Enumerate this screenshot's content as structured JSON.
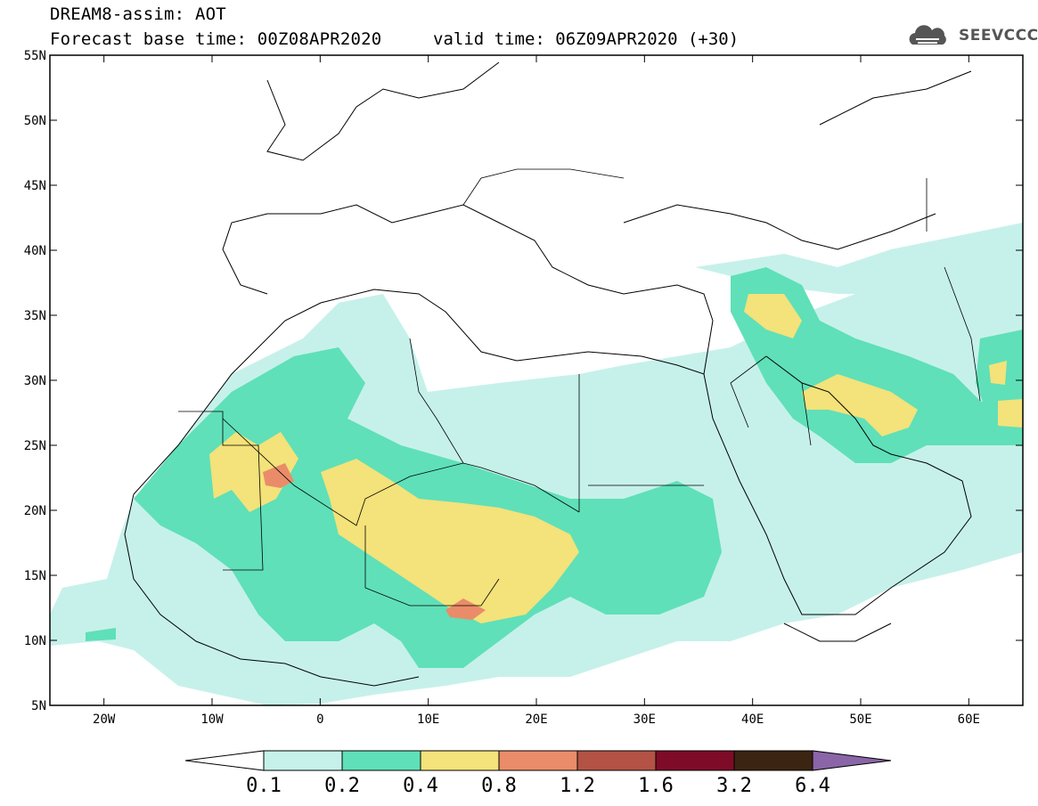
{
  "header": {
    "title": "DREAM8-assim: AOT",
    "base_time": "Forecast base time: 00Z08APR2020",
    "valid_time": "valid time: 06Z09APR2020 (+30)",
    "logo_text": "SEEVCCC"
  },
  "map": {
    "lon_range": [
      -25,
      65
    ],
    "lat_range": [
      5,
      55
    ],
    "lat_labels": [
      "5N",
      "10N",
      "15N",
      "20N",
      "25N",
      "30N",
      "35N",
      "40N",
      "45N",
      "50N",
      "55N"
    ],
    "lon_labels": [
      "20W",
      "10W",
      "0",
      "10E",
      "20E",
      "30E",
      "40E",
      "50E",
      "60E"
    ]
  },
  "legend": {
    "levels": [
      "0.1",
      "0.2",
      "0.4",
      "0.8",
      "1.2",
      "1.6",
      "3.2",
      "6.4"
    ],
    "colors": [
      "#c6f1ea",
      "#5fe0b8",
      "#f4e27a",
      "#ea8c69",
      "#b35245",
      "#7e0b27",
      "#3b2412",
      "#8a65a7"
    ]
  }
}
